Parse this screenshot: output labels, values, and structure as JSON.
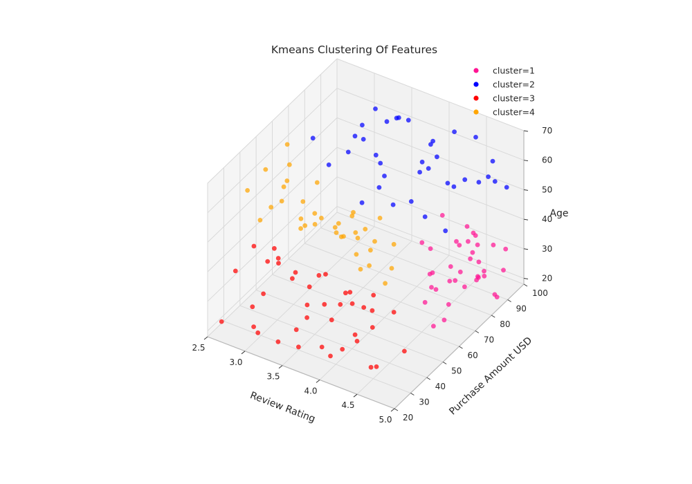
{
  "chart_data": {
    "type": "scatter",
    "title": "Kmeans Clustering Of Features",
    "axes": {
      "x": {
        "label": "Review Rating",
        "range": [
          2.5,
          5.0
        ],
        "ticks": [
          "2.5",
          "3.0",
          "3.5",
          "4.0",
          "4.5",
          "5.0"
        ]
      },
      "y": {
        "label": "Purchase Amount USD",
        "range": [
          20,
          100
        ],
        "ticks": [
          "20",
          "30",
          "40",
          "50",
          "60",
          "70",
          "80",
          "90",
          "100"
        ]
      },
      "z": {
        "label": "Age",
        "range": [
          18,
          70
        ],
        "ticks": [
          "20",
          "30",
          "40",
          "50",
          "60",
          "70"
        ]
      }
    },
    "grid": true,
    "legend_position": "top-right",
    "series": [
      {
        "name": "cluster=1",
        "color": "#ff1493",
        "x": [
          4.6,
          4.8,
          4.5,
          4.9,
          4.7,
          4.4,
          4.8,
          4.6,
          4.9,
          4.5,
          4.7,
          4.3,
          4.8,
          4.6,
          5.0,
          4.4,
          4.7,
          4.9,
          4.5,
          4.6,
          4.8,
          4.3,
          4.7,
          4.9,
          4.5,
          4.6,
          4.8,
          4.4,
          5.0,
          4.7,
          4.6,
          4.2,
          4.8,
          4.5,
          4.9,
          4.7
        ],
        "y": [
          72,
          80,
          65,
          88,
          95,
          70,
          60,
          84,
          76,
          90,
          68,
          78,
          98,
          62,
          82,
          86,
          74,
          92,
          66,
          94,
          70,
          82,
          58,
          80,
          88,
          76,
          64,
          96,
          72,
          86,
          90,
          74,
          78,
          62,
          68,
          84
        ],
        "z": [
          22,
          28,
          35,
          19,
          31,
          40,
          25,
          37,
          43,
          27,
          33,
          21,
          29,
          38,
          24,
          34,
          42,
          26,
          30,
          20,
          36,
          44,
          23,
          32,
          39,
          28,
          41,
          25,
          35,
          30,
          22,
          38,
          45,
          27,
          33,
          40
        ]
      },
      {
        "name": "cluster=2",
        "color": "#0000ff",
        "x": [
          3.0,
          3.3,
          3.6,
          3.9,
          4.2,
          4.5,
          4.8,
          3.2,
          3.5,
          3.8,
          4.1,
          4.4,
          4.7,
          5.0,
          3.1,
          3.4,
          3.7,
          4.0,
          4.3,
          4.6,
          4.9,
          3.3,
          3.6,
          3.9,
          4.2,
          4.5,
          4.8,
          3.5,
          3.8,
          4.1,
          4.4,
          4.7,
          3.0,
          3.6,
          4.0,
          4.6
        ],
        "y": [
          62,
          70,
          80,
          88,
          94,
          76,
          66,
          84,
          92,
          64,
          72,
          98,
          86,
          78,
          96,
          74,
          60,
          90,
          68,
          82,
          94,
          58,
          86,
          70,
          78,
          62,
          90,
          98,
          66,
          84,
          74,
          96,
          88,
          76,
          60,
          70
        ],
        "z": [
          68,
          62,
          70,
          55,
          65,
          60,
          67,
          58,
          64,
          69,
          52,
          63,
          57,
          66,
          61,
          70,
          54,
          62,
          66,
          59,
          53,
          64,
          68,
          50,
          61,
          56,
          63,
          60,
          57,
          65,
          69,
          52,
          55,
          58,
          66,
          48
        ]
      },
      {
        "name": "cluster=3",
        "color": "#ff0000",
        "x": [
          2.6,
          2.9,
          3.2,
          3.5,
          3.8,
          4.1,
          4.4,
          4.7,
          2.7,
          3.0,
          3.3,
          3.6,
          3.9,
          4.2,
          4.5,
          2.8,
          3.1,
          3.4,
          3.7,
          4.0,
          4.3,
          4.6,
          2.6,
          3.0,
          3.4,
          3.8,
          4.2,
          2.9,
          3.3,
          3.7,
          4.1,
          4.5,
          3.1,
          3.5,
          3.9,
          4.3,
          2.7,
          3.2,
          3.6,
          4.0
        ],
        "y": [
          24,
          36,
          42,
          30,
          48,
          22,
          34,
          40,
          52,
          28,
          46,
          38,
          26,
          44,
          32,
          50,
          20,
          40,
          54,
          36,
          28,
          24,
          44,
          34,
          22,
          42,
          38,
          30,
          56,
          26,
          48,
          20,
          36,
          46,
          32,
          52,
          28,
          40,
          24,
          34
        ],
        "z": [
          22,
          28,
          35,
          19,
          31,
          26,
          38,
          24,
          33,
          20,
          29,
          40,
          25,
          36,
          21,
          30,
          34,
          27,
          23,
          39,
          32,
          26,
          37,
          41,
          24,
          30,
          35,
          20,
          28,
          33,
          22,
          36,
          42,
          25,
          31,
          27,
          38,
          34,
          29,
          21
        ]
      },
      {
        "name": "cluster=4",
        "color": "#ffa500",
        "x": [
          2.6,
          2.8,
          3.0,
          3.2,
          3.4,
          3.6,
          3.8,
          4.0,
          4.2,
          4.4,
          2.7,
          2.9,
          3.1,
          3.3,
          3.5,
          3.7,
          3.9,
          4.1,
          4.3,
          2.6,
          3.0,
          3.4,
          3.8,
          4.2,
          2.8,
          3.2,
          3.6,
          4.0,
          4.4,
          3.1,
          3.5,
          3.9,
          2.7,
          3.3,
          3.7,
          4.1
        ],
        "y": [
          40,
          52,
          46,
          58,
          36,
          62,
          44,
          54,
          48,
          42,
          60,
          34,
          50,
          64,
          40,
          56,
          38,
          46,
          52,
          66,
          44,
          58,
          50,
          36,
          42,
          54,
          48,
          40,
          46,
          60,
          34,
          56,
          50,
          42,
          62,
          38
        ],
        "z": [
          58,
          50,
          62,
          45,
          55,
          40,
          52,
          47,
          60,
          43,
          64,
          54,
          48,
          41,
          59,
          46,
          56,
          44,
          50,
          53,
          61,
          42,
          57,
          49,
          66,
          45,
          51,
          63,
          46,
          55,
          58,
          42,
          48,
          60,
          44,
          52
        ]
      }
    ]
  }
}
